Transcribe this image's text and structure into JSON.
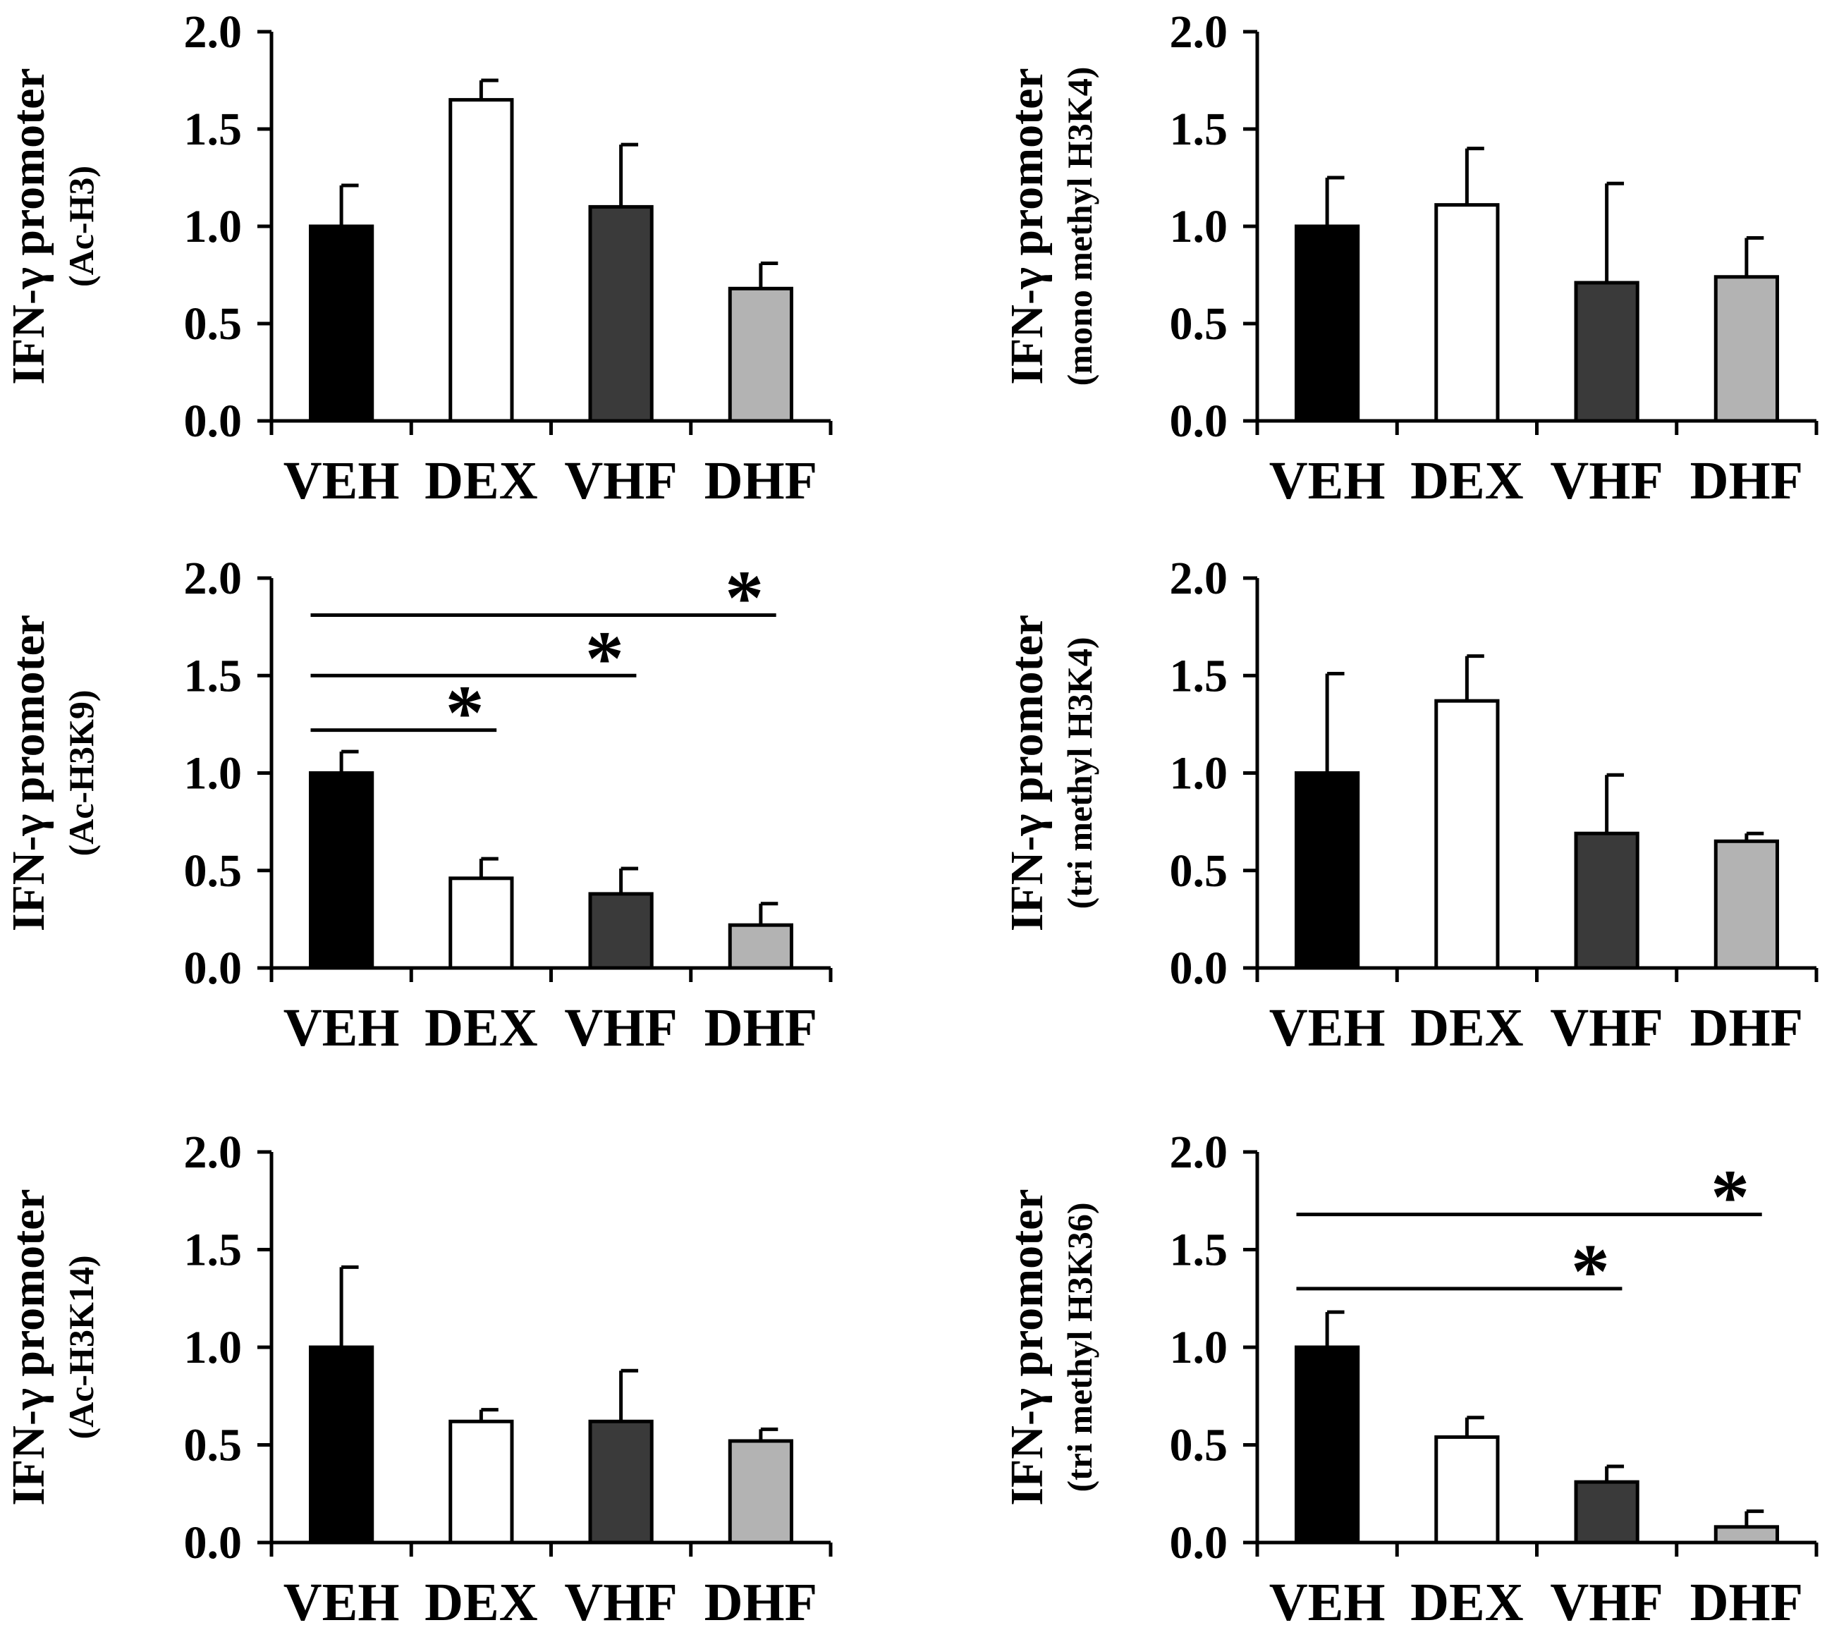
{
  "figure": {
    "category_labels": [
      "VEH",
      "DEX",
      "VHF",
      "DHF"
    ],
    "colors": {
      "VEH": "#000000",
      "DEX": "#ffffff",
      "VHF": "#3a3a3a",
      "DHF": "#b3b3b3"
    }
  },
  "chart_data": [
    {
      "type": "bar",
      "ylabel_main": "IFN-γ promoter",
      "ylabel_sub": "(Ac-H3)",
      "categories": [
        "VEH",
        "DEX",
        "VHF",
        "DHF"
      ],
      "values": [
        1.0,
        1.65,
        1.1,
        0.68
      ],
      "errors": [
        0.21,
        0.1,
        0.32,
        0.13
      ],
      "ylim": [
        0,
        2
      ],
      "yticks": [
        "0.0",
        "0.5",
        "1.0",
        "1.5",
        "2.0"
      ],
      "significance": []
    },
    {
      "type": "bar",
      "ylabel_main": "IFN-γ promoter",
      "ylabel_sub": "(mono methyl H3K4)",
      "categories": [
        "VEH",
        "DEX",
        "VHF",
        "DHF"
      ],
      "values": [
        1.0,
        1.11,
        0.71,
        0.74
      ],
      "errors": [
        0.25,
        0.29,
        0.51,
        0.2
      ],
      "ylim": [
        0,
        2
      ],
      "yticks": [
        "0.0",
        "0.5",
        "1.0",
        "1.5",
        "2.0"
      ],
      "significance": []
    },
    {
      "type": "bar",
      "ylabel_main": "IFN-γ promoter",
      "ylabel_sub": "(Ac-H3K9)",
      "categories": [
        "VEH",
        "DEX",
        "VHF",
        "DHF"
      ],
      "values": [
        1.0,
        0.46,
        0.38,
        0.22
      ],
      "errors": [
        0.11,
        0.1,
        0.13,
        0.11
      ],
      "ylim": [
        0,
        2
      ],
      "yticks": [
        "0.0",
        "0.5",
        "1.0",
        "1.5",
        "2.0"
      ],
      "significance": [
        {
          "from": "VEH",
          "to": "DHF",
          "y": 1.81,
          "label": "*"
        },
        {
          "from": "VEH",
          "to": "VHF",
          "y": 1.5,
          "label": "*"
        },
        {
          "from": "VEH",
          "to": "DEX",
          "y": 1.22,
          "label": "*"
        }
      ]
    },
    {
      "type": "bar",
      "ylabel_main": "IFN-γ promoter",
      "ylabel_sub": "(tri methyl H3K4)",
      "categories": [
        "VEH",
        "DEX",
        "VHF",
        "DHF"
      ],
      "values": [
        1.0,
        1.37,
        0.69,
        0.65
      ],
      "errors": [
        0.51,
        0.23,
        0.3,
        0.04
      ],
      "ylim": [
        0,
        2
      ],
      "yticks": [
        "0.0",
        "0.5",
        "1.0",
        "1.5",
        "2.0"
      ],
      "significance": []
    },
    {
      "type": "bar",
      "ylabel_main": "IFN-γ promoter",
      "ylabel_sub": "(Ac-H3K14)",
      "categories": [
        "VEH",
        "DEX",
        "VHF",
        "DHF"
      ],
      "values": [
        1.0,
        0.62,
        0.62,
        0.52
      ],
      "errors": [
        0.41,
        0.06,
        0.26,
        0.06
      ],
      "ylim": [
        0,
        2
      ],
      "yticks": [
        "0.0",
        "0.5",
        "1.0",
        "1.5",
        "2.0"
      ],
      "significance": []
    },
    {
      "type": "bar",
      "ylabel_main": "IFN-γ promoter",
      "ylabel_sub": "(tri methyl H3K36)",
      "categories": [
        "VEH",
        "DEX",
        "VHF",
        "DHF"
      ],
      "values": [
        1.0,
        0.54,
        0.31,
        0.08
      ],
      "errors": [
        0.18,
        0.1,
        0.08,
        0.08
      ],
      "ylim": [
        0,
        2
      ],
      "yticks": [
        "0.0",
        "0.5",
        "1.0",
        "1.5",
        "2.0"
      ],
      "significance": [
        {
          "from": "VEH",
          "to": "DHF",
          "y": 1.68,
          "label": "*"
        },
        {
          "from": "VEH",
          "to": "VHF",
          "y": 1.3,
          "label": "*"
        }
      ]
    }
  ]
}
